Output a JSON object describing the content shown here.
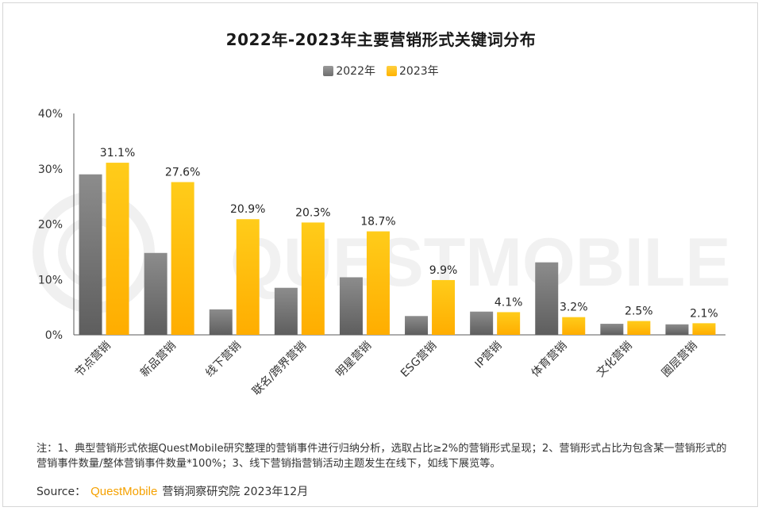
{
  "chart_data": {
    "type": "bar",
    "title": "2022年-2023年主要营销形式关键词分布",
    "categories": [
      "节点营销",
      "新品营销",
      "线下营销",
      "联名/跨界营销",
      "明星营销",
      "ESG营销",
      "IP营销",
      "体育营销",
      "文化营销",
      "圈层营销"
    ],
    "series": [
      {
        "name": "2022年",
        "color": "#7f7f7f",
        "values": [
          29.0,
          14.8,
          4.6,
          8.5,
          10.4,
          3.4,
          4.2,
          13.1,
          2.0,
          1.9
        ]
      },
      {
        "name": "2023年",
        "color": "#ffc000",
        "values": [
          31.1,
          27.6,
          20.9,
          20.3,
          18.7,
          9.9,
          4.1,
          3.2,
          2.5,
          2.1
        ]
      }
    ],
    "data_labels": [
      "31.1%",
      "27.6%",
      "20.9%",
      "20.3%",
      "18.7%",
      "9.9%",
      "4.1%",
      "3.2%",
      "2.5%",
      "2.1%"
    ],
    "y_ticks": [
      "0%",
      "10%",
      "20%",
      "30%",
      "40%"
    ],
    "ylim": [
      0,
      40
    ],
    "xlabel": "",
    "ylabel": "",
    "grid": false,
    "legend": "top-center"
  },
  "watermark": "QUESTMOBILE",
  "note": "注：1、典型营销形式依据QuestMobile研究整理的营销事件进行归纳分析，选取占比≥2%的营销形式呈现；2、营销形式占比为包含某一营销形式的营销事件数量/整体营销事件数量*100%；3、线下营销指营销活动主题发生在线下，如线下展览等。",
  "source": {
    "prefix": "Source：",
    "brand": "QuestMobile",
    "suffix": "营销洞察研究院 2023年12月"
  }
}
